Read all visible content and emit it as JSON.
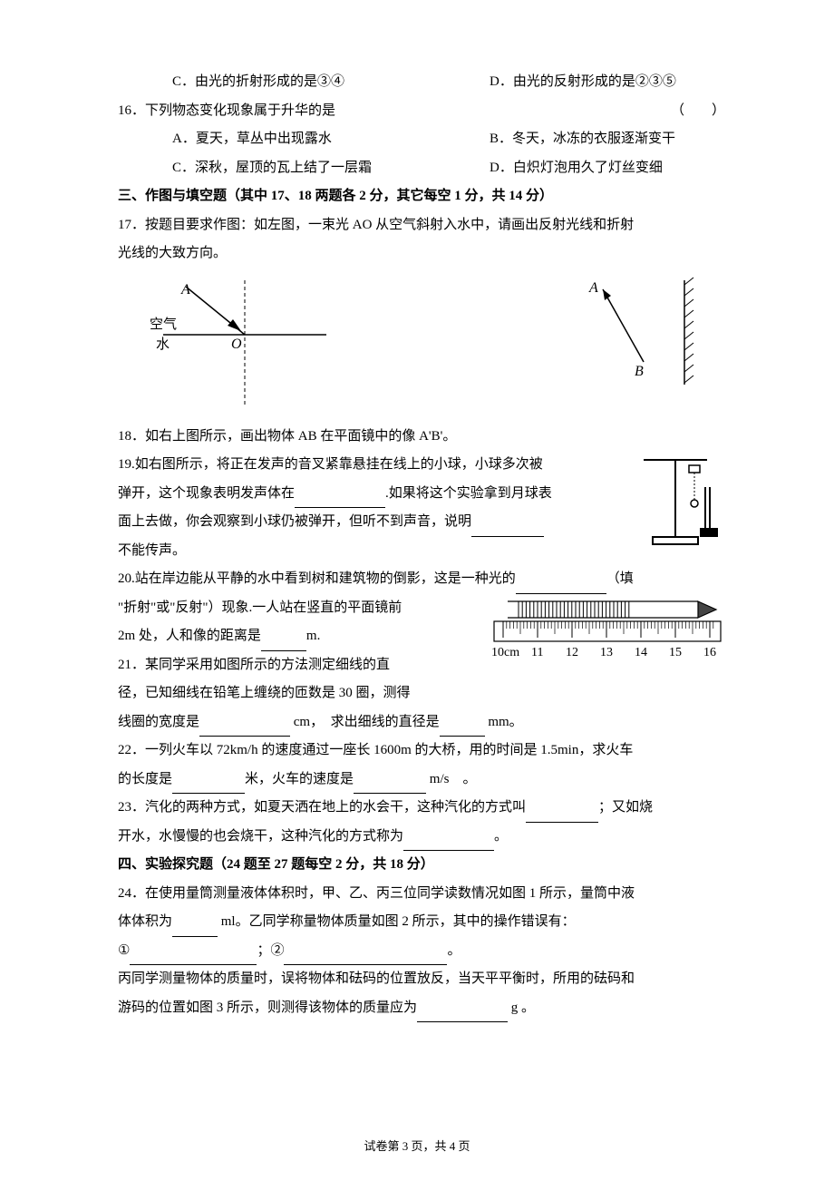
{
  "q15": {
    "opt_c": "C．由光的折射形成的是③④",
    "opt_d": "D．由光的反射形成的是②③⑤"
  },
  "q16": {
    "stem": "16．下列物态变化现象属于升华的是",
    "paren": "（　　）",
    "opt_a": "A．夏天，草丛中出现露水",
    "opt_b": "B．冬天，冰冻的衣服逐渐变干",
    "opt_c": "C．深秋，屋顶的瓦上结了一层霜",
    "opt_d": "D．白炽灯泡用久了灯丝变细"
  },
  "section3": "三、作图与填空题（其中 17、18 两题各 2 分，其它每空 1 分，共 14 分）",
  "q17": {
    "l1": "17．按题目要求作图：如左图，一束光 AO 从空气斜射入水中，请画出反射光线和折射",
    "l2": "光线的大致方向。"
  },
  "diagram17": {
    "label_A": "A",
    "label_O": "O",
    "label_air": "空气",
    "label_water": "水"
  },
  "diagram18": {
    "label_A": "A",
    "label_B": "B"
  },
  "q18": "18．如右上图所示，画出物体 AB 在平面镜中的像 A'B'。",
  "q19": {
    "l1": "19.如右图所示，将正在发声的音叉紧靠悬挂在线上的小球，小球多次被",
    "l2a": "弹开，这个现象表明发声体在",
    "l2b": ".如果将这个实验拿到月球表",
    "l3a": "面上去做，你会观察到小球仍被弹开，但听不到声音，说明",
    "l4": "不能传声。"
  },
  "q20": {
    "l1a": "20.站在岸边能从平静的水中看到树和建筑物的倒影，这是一种光的",
    "l1b": "（填",
    "l2": "\"折射\"或\"反射\"）现象.一人站在竖直的平面镜前",
    "l3a": "2m 处，人和像的距离是",
    "l3b": "m."
  },
  "q21": {
    "l1": "21．某同学采用如图所示的方法测定细线的直",
    "l2": "径，已知细线在铅笔上缠绕的匝数是 30 圈，测得",
    "l3a": "线圈的宽度是",
    "l3b": " cm，　求出细线的直径是",
    "l3c": " mm。"
  },
  "ruler": {
    "labels": [
      "10cm",
      "11",
      "12",
      "13",
      "14",
      "15",
      "16"
    ]
  },
  "q22": {
    "l1": "22．一列火车以 72km/h 的速度通过一座长 1600m 的大桥，用的时间是 1.5min，求火车",
    "l2a": "的长度是",
    "l2b": "米，火车的速度是",
    "l2c": " m/s　。"
  },
  "q23": {
    "l1a": "23．汽化的两种方式，如夏天洒在地上的水会干，这种汽化的方式叫",
    "l1b": "；又如烧",
    "l2a": "开水，水慢慢的也会烧干，这种汽化的方式称为",
    "l2b": "。"
  },
  "section4": "四、实验探究题（24 题至 27 题每空 2 分，共 18 分）",
  "q24": {
    "l1": "24．在使用量筒测量液体体积时，甲、乙、丙三位同学读数情况如图 1 所示，量筒中液",
    "l2a": "体体积为",
    "l2b": " ml。乙同学称量物体质量如图 2 所示，其中的操作错误有：",
    "l3a": "①",
    "l3b": "；②",
    "l3c": "。",
    "l4": "丙同学测量物体的质量时，误将物体和砝码的位置放反，当天平平衡时，所用的砝码和",
    "l5a": "游码的位置如图 3 所示，则测得该物体的质量应为",
    "l5b": " g 。"
  },
  "footer": "试卷第 3 页，共 4 页"
}
